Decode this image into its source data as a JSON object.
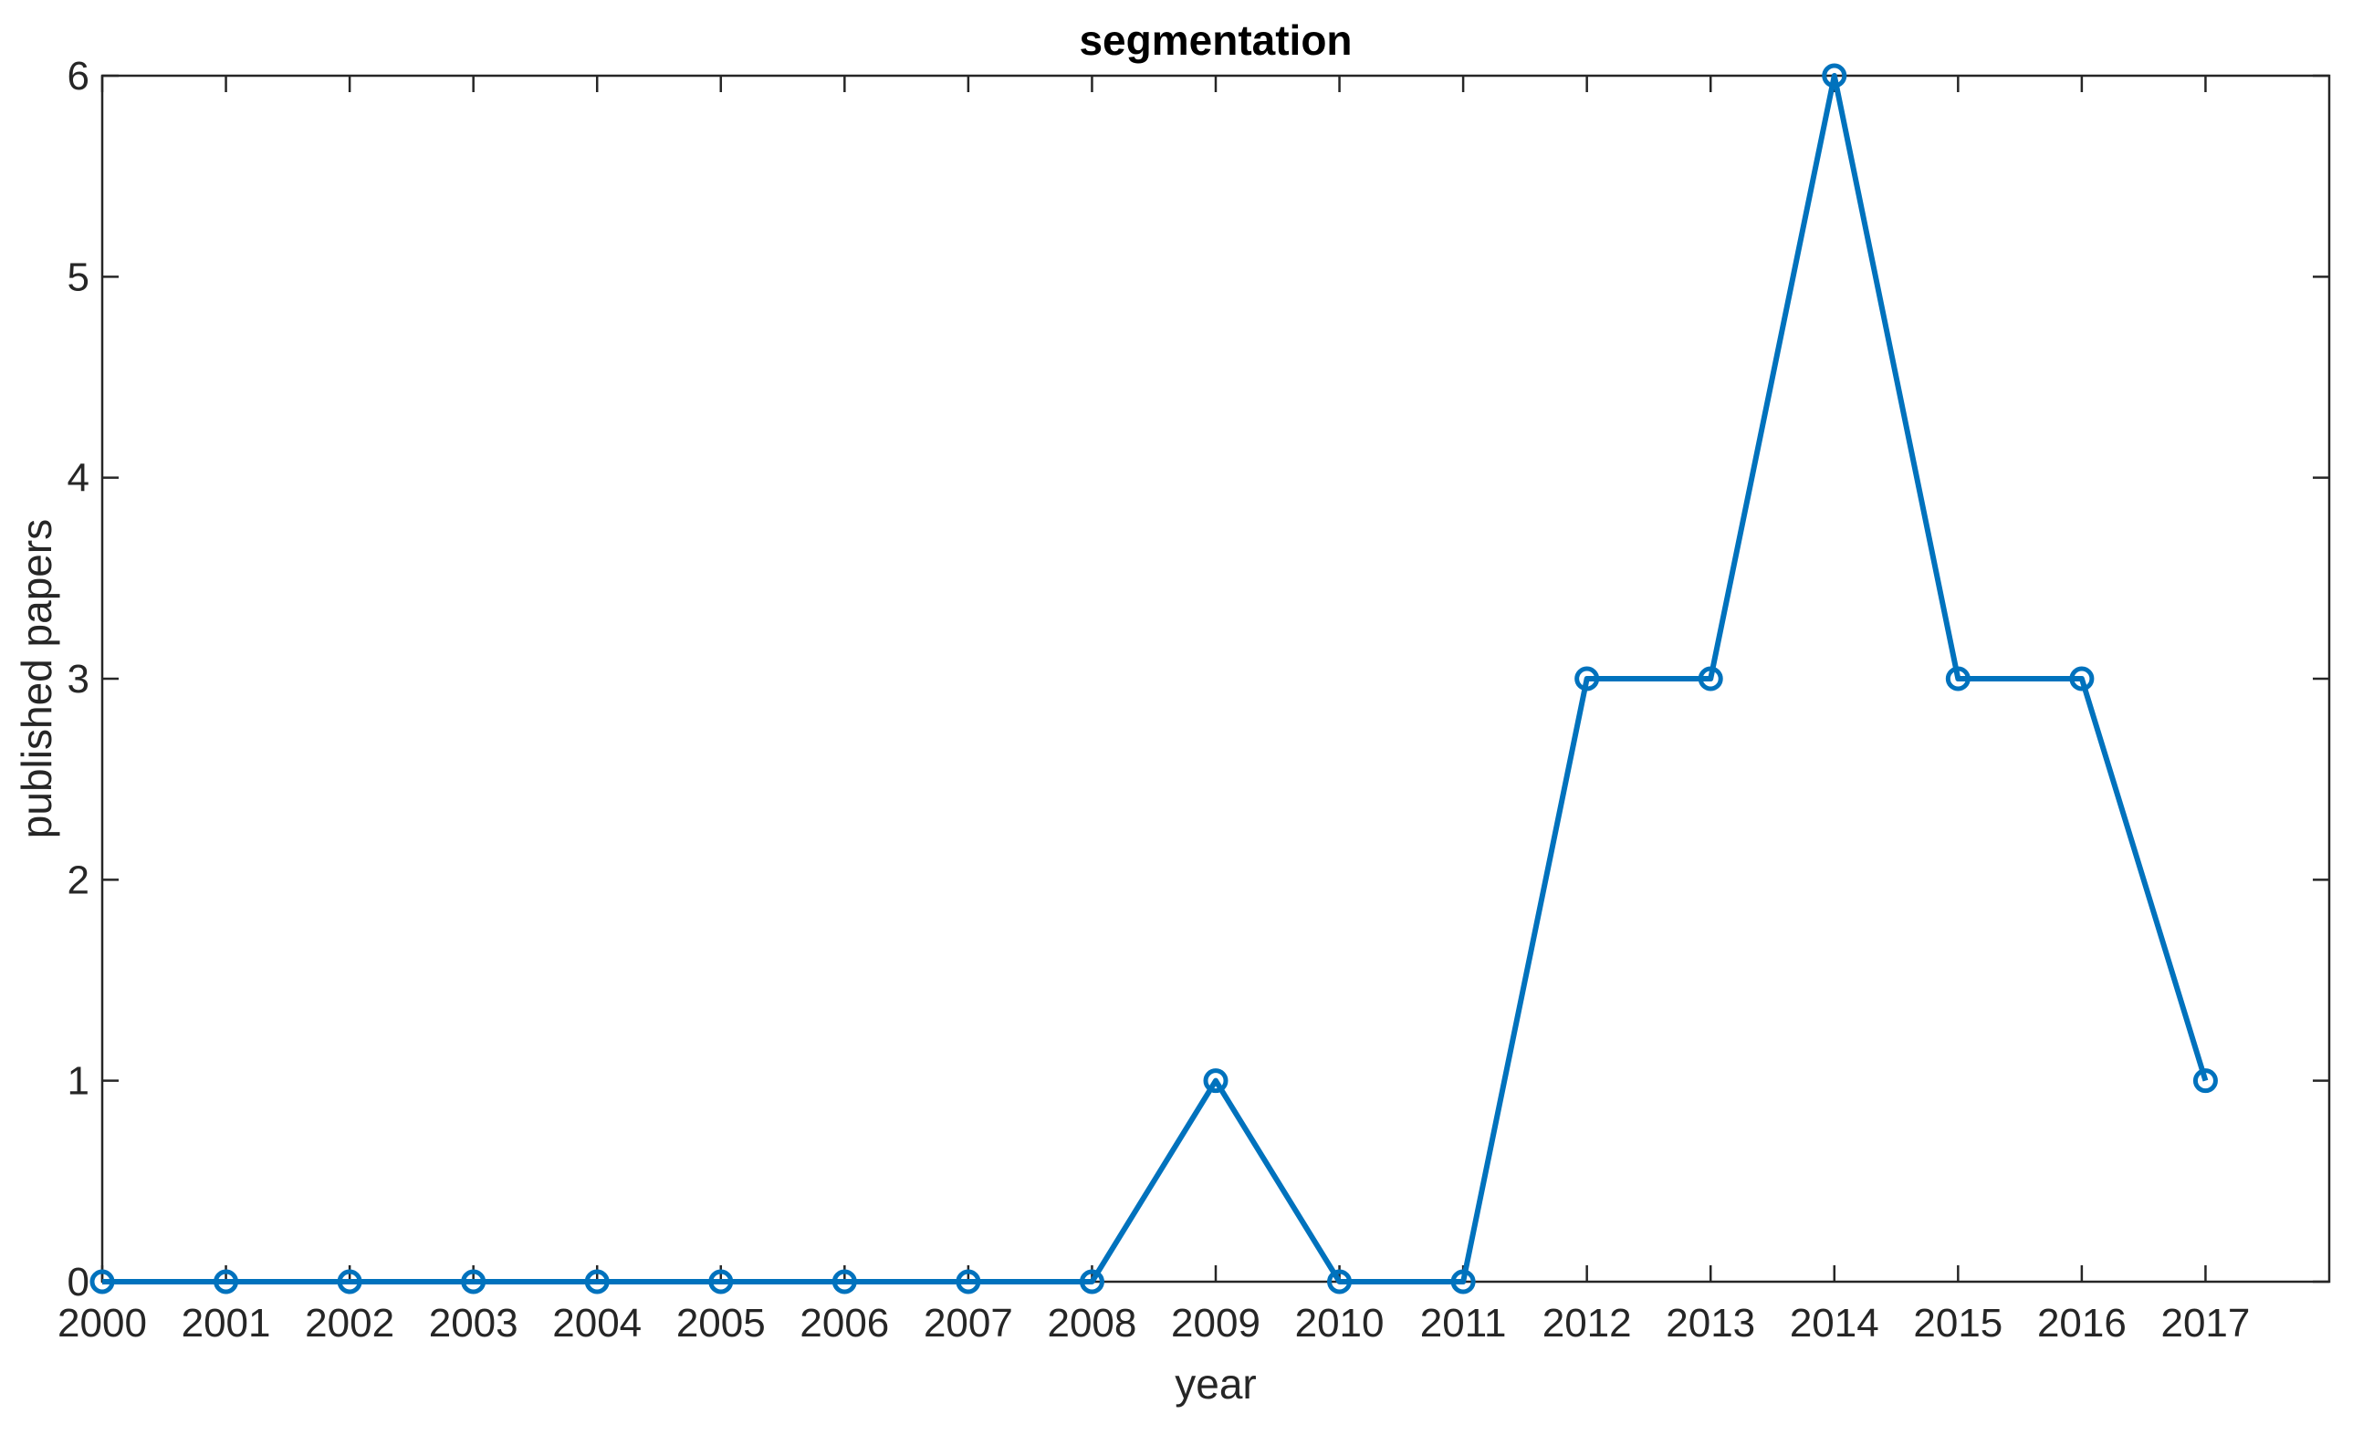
{
  "chart_data": {
    "type": "line",
    "title": "segmentation",
    "xlabel": "year",
    "ylabel": "published papers",
    "x": [
      2000,
      2001,
      2002,
      2003,
      2004,
      2005,
      2006,
      2007,
      2008,
      2009,
      2010,
      2011,
      2012,
      2013,
      2014,
      2015,
      2016,
      2017
    ],
    "x_tick_labels": [
      "2000",
      "2001",
      "2002",
      "2003",
      "2004",
      "2005",
      "2006",
      "2007",
      "2008",
      "2009",
      "2010",
      "2011",
      "2012",
      "2013",
      "2014",
      "2015",
      "2016",
      "2017"
    ],
    "y_ticks": [
      0,
      1,
      2,
      3,
      4,
      5,
      6
    ],
    "y_tick_labels": [
      "0",
      "1",
      "2",
      "3",
      "4",
      "5",
      "6"
    ],
    "xlim": [
      2000,
      2018
    ],
    "ylim": [
      0,
      6
    ],
    "grid": false,
    "series": [
      {
        "values": [
          0,
          0,
          0,
          0,
          0,
          0,
          0,
          0,
          0,
          1,
          0,
          0,
          3,
          3,
          6,
          3,
          3,
          1
        ],
        "color": "#0072BD",
        "marker": "circle"
      }
    ]
  }
}
